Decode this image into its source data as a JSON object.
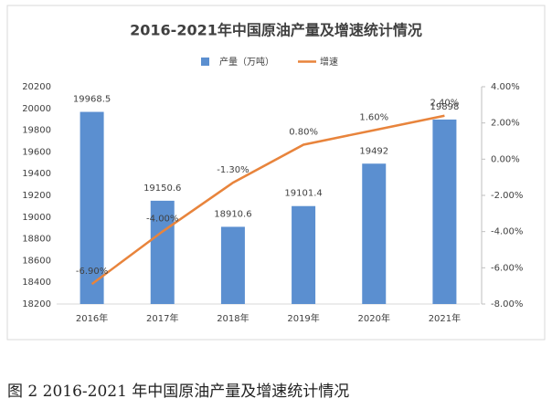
{
  "chart_data": {
    "type": "bar",
    "title": "2016-2021年中国原油产量及增速统计情况",
    "categories": [
      "2016年",
      "2017年",
      "2018年",
      "2019年",
      "2020年",
      "2021年"
    ],
    "series": [
      {
        "name": "产量（万吨）",
        "type": "bar",
        "color": "#5b8fd0",
        "values": [
          19968.5,
          19150.6,
          18910.6,
          19101.4,
          19492,
          19898
        ]
      },
      {
        "name": "增速",
        "type": "line",
        "axis": "y2",
        "color": "#e8843c",
        "values": [
          -6.9,
          -4.0,
          -1.3,
          0.8,
          1.6,
          2.4
        ],
        "value_labels": [
          "-6.90%",
          "-4.00%",
          "-1.30%",
          "0.80%",
          "1.60%",
          "2.40%"
        ]
      }
    ],
    "ylim": [
      18200,
      20200
    ],
    "yticks": [
      18200,
      18400,
      18600,
      18800,
      19000,
      19200,
      19400,
      19600,
      19800,
      20000,
      20200
    ],
    "y2lim": [
      -8,
      4
    ],
    "y2ticks": [
      {
        "value": -8,
        "label": "-8.00%"
      },
      {
        "value": -6,
        "label": "-6.00%"
      },
      {
        "value": -4,
        "label": "-4.00%"
      },
      {
        "value": -2,
        "label": "-2.00%"
      },
      {
        "value": 0,
        "label": "0.00%"
      },
      {
        "value": 2,
        "label": "2.00%"
      },
      {
        "value": 4,
        "label": "4.00%"
      }
    ],
    "grid": false,
    "legend": "top"
  },
  "caption": "图 2 2016-2021 年中国原油产量及增速统计情况"
}
